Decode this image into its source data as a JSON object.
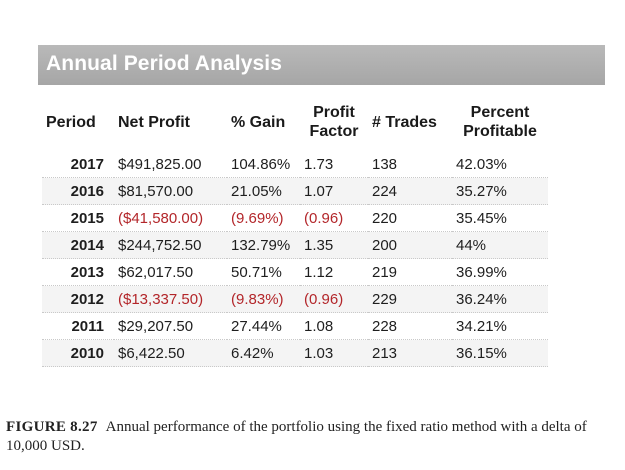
{
  "title": "Annual Period Analysis",
  "table": {
    "headers": {
      "period": "Period",
      "net_profit": "Net Profit",
      "gain": "% Gain",
      "profit_factor_1": "Profit",
      "profit_factor_2": "Factor",
      "trades": "# Trades",
      "percent_profitable_1": "Percent",
      "percent_profitable_2": "Profitable"
    },
    "rows": [
      {
        "period": "2017",
        "net_profit": "$491,825.00",
        "gain": "104.86%",
        "profit_factor": "1.73",
        "trades": "138",
        "percent_profitable": "42.03%"
      },
      {
        "period": "2016",
        "net_profit": "$81,570.00",
        "gain": "21.05%",
        "profit_factor": "1.07",
        "trades": "224",
        "percent_profitable": "35.27%"
      },
      {
        "period": "2015",
        "net_profit": "($41,580.00)",
        "gain": "(9.69%)",
        "profit_factor": "(0.96)",
        "trades": "220",
        "percent_profitable": "35.45%"
      },
      {
        "period": "2014",
        "net_profit": "$244,752.50",
        "gain": "132.79%",
        "profit_factor": "1.35",
        "trades": "200",
        "percent_profitable": "44%"
      },
      {
        "period": "2013",
        "net_profit": "$62,017.50",
        "gain": "50.71%",
        "profit_factor": "1.12",
        "trades": "219",
        "percent_profitable": "36.99%"
      },
      {
        "period": "2012",
        "net_profit": "($13,337.50)",
        "gain": "(9.83%)",
        "profit_factor": "(0.96)",
        "trades": "229",
        "percent_profitable": "36.24%"
      },
      {
        "period": "2011",
        "net_profit": "$29,207.50",
        "gain": "27.44%",
        "profit_factor": "1.08",
        "trades": "228",
        "percent_profitable": "34.21%"
      },
      {
        "period": "2010",
        "net_profit": "$6,422.50",
        "gain": "6.42%",
        "profit_factor": "1.03",
        "trades": "213",
        "percent_profitable": "36.15%"
      }
    ]
  },
  "colors": {
    "banner_bg": "#aaaaaa",
    "banner_text": "#ffffff",
    "negative_value": "#b3262a"
  },
  "caption": {
    "label": "FIGURE 8.27",
    "text": "Annual performance of the portfolio using the fixed ratio method with a delta of 10,000 USD."
  }
}
